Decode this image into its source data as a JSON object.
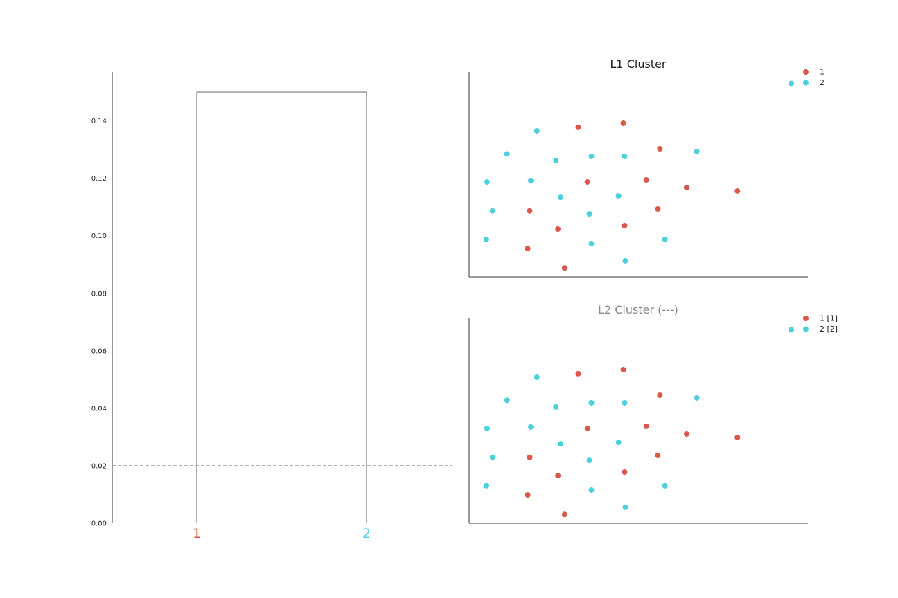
{
  "colors": {
    "cluster_1": "#d9584a",
    "cluster_2": "#4dd0de",
    "axis": "#333333",
    "link": "#7a7a7a",
    "threshold": "#888888"
  },
  "chart_data": [
    {
      "type": "dendrogram",
      "ylim": [
        0,
        0.157
      ],
      "yticks": [
        "0.00",
        "0.02",
        "0.04",
        "0.06",
        "0.08",
        "0.10",
        "0.12",
        "0.14"
      ],
      "ytick_values": [
        0,
        0.02,
        0.04,
        0.06,
        0.08,
        0.1,
        0.12,
        0.14
      ],
      "leaves": [
        {
          "label": "1",
          "cluster": "1"
        },
        {
          "label": "2",
          "cluster": "2"
        }
      ],
      "merge_height": 0.15,
      "threshold": 0.02
    },
    {
      "type": "scatter",
      "title": "L1 Cluster",
      "legend": [
        {
          "label": "1",
          "cluster": "1"
        },
        {
          "label": "2",
          "cluster": "2"
        }
      ],
      "legend_placement": "top-right",
      "xlim": [
        0,
        1
      ],
      "ylim": [
        0,
        1
      ],
      "points": [
        {
          "x": 0.051,
          "y": 0.183,
          "cluster": "2"
        },
        {
          "x": 0.173,
          "y": 0.138,
          "cluster": "1"
        },
        {
          "x": 0.282,
          "y": 0.043,
          "cluster": "1"
        },
        {
          "x": 0.361,
          "y": 0.162,
          "cluster": "2"
        },
        {
          "x": 0.461,
          "y": 0.078,
          "cluster": "2"
        },
        {
          "x": 0.578,
          "y": 0.183,
          "cluster": "2"
        },
        {
          "x": 0.262,
          "y": 0.233,
          "cluster": "1"
        },
        {
          "x": 0.459,
          "y": 0.25,
          "cluster": "1"
        },
        {
          "x": 0.069,
          "y": 0.322,
          "cluster": "2"
        },
        {
          "x": 0.179,
          "y": 0.322,
          "cluster": "1"
        },
        {
          "x": 0.355,
          "y": 0.307,
          "cluster": "2"
        },
        {
          "x": 0.557,
          "y": 0.331,
          "cluster": "1"
        },
        {
          "x": 0.27,
          "y": 0.388,
          "cluster": "2"
        },
        {
          "x": 0.441,
          "y": 0.395,
          "cluster": "2"
        },
        {
          "x": 0.053,
          "y": 0.463,
          "cluster": "2"
        },
        {
          "x": 0.182,
          "y": 0.47,
          "cluster": "2"
        },
        {
          "x": 0.349,
          "y": 0.463,
          "cluster": "1"
        },
        {
          "x": 0.523,
          "y": 0.473,
          "cluster": "1"
        },
        {
          "x": 0.642,
          "y": 0.436,
          "cluster": "1"
        },
        {
          "x": 0.792,
          "y": 0.419,
          "cluster": "1"
        },
        {
          "x": 0.112,
          "y": 0.6,
          "cluster": "2"
        },
        {
          "x": 0.256,
          "y": 0.568,
          "cluster": "2"
        },
        {
          "x": 0.361,
          "y": 0.588,
          "cluster": "2"
        },
        {
          "x": 0.459,
          "y": 0.588,
          "cluster": "2"
        },
        {
          "x": 0.563,
          "y": 0.625,
          "cluster": "1"
        },
        {
          "x": 0.672,
          "y": 0.612,
          "cluster": "2"
        },
        {
          "x": 0.2,
          "y": 0.713,
          "cluster": "2"
        },
        {
          "x": 0.322,
          "y": 0.73,
          "cluster": "1"
        },
        {
          "x": 0.455,
          "y": 0.75,
          "cluster": "1"
        }
      ]
    },
    {
      "type": "scatter",
      "title": "L2 Cluster (---)",
      "legend": [
        {
          "label": "1 [1]",
          "cluster": "1"
        },
        {
          "label": "2 [2]",
          "cluster": "2"
        }
      ],
      "legend_placement": "top-right",
      "xlim": [
        0,
        1
      ],
      "ylim": [
        0,
        1
      ],
      "points": [
        {
          "x": 0.051,
          "y": 0.183,
          "cluster": "2"
        },
        {
          "x": 0.173,
          "y": 0.138,
          "cluster": "1"
        },
        {
          "x": 0.282,
          "y": 0.043,
          "cluster": "1"
        },
        {
          "x": 0.361,
          "y": 0.162,
          "cluster": "2"
        },
        {
          "x": 0.461,
          "y": 0.078,
          "cluster": "2"
        },
        {
          "x": 0.578,
          "y": 0.183,
          "cluster": "2"
        },
        {
          "x": 0.262,
          "y": 0.233,
          "cluster": "1"
        },
        {
          "x": 0.459,
          "y": 0.25,
          "cluster": "1"
        },
        {
          "x": 0.069,
          "y": 0.322,
          "cluster": "2"
        },
        {
          "x": 0.179,
          "y": 0.322,
          "cluster": "1"
        },
        {
          "x": 0.355,
          "y": 0.307,
          "cluster": "2"
        },
        {
          "x": 0.557,
          "y": 0.331,
          "cluster": "1"
        },
        {
          "x": 0.27,
          "y": 0.388,
          "cluster": "2"
        },
        {
          "x": 0.441,
          "y": 0.395,
          "cluster": "2"
        },
        {
          "x": 0.053,
          "y": 0.463,
          "cluster": "2"
        },
        {
          "x": 0.182,
          "y": 0.47,
          "cluster": "2"
        },
        {
          "x": 0.349,
          "y": 0.463,
          "cluster": "1"
        },
        {
          "x": 0.523,
          "y": 0.473,
          "cluster": "1"
        },
        {
          "x": 0.642,
          "y": 0.436,
          "cluster": "1"
        },
        {
          "x": 0.792,
          "y": 0.419,
          "cluster": "1"
        },
        {
          "x": 0.112,
          "y": 0.6,
          "cluster": "2"
        },
        {
          "x": 0.256,
          "y": 0.568,
          "cluster": "2"
        },
        {
          "x": 0.361,
          "y": 0.588,
          "cluster": "2"
        },
        {
          "x": 0.459,
          "y": 0.588,
          "cluster": "2"
        },
        {
          "x": 0.563,
          "y": 0.625,
          "cluster": "1"
        },
        {
          "x": 0.672,
          "y": 0.612,
          "cluster": "2"
        },
        {
          "x": 0.2,
          "y": 0.713,
          "cluster": "2"
        },
        {
          "x": 0.322,
          "y": 0.73,
          "cluster": "1"
        },
        {
          "x": 0.455,
          "y": 0.75,
          "cluster": "1"
        }
      ]
    }
  ]
}
